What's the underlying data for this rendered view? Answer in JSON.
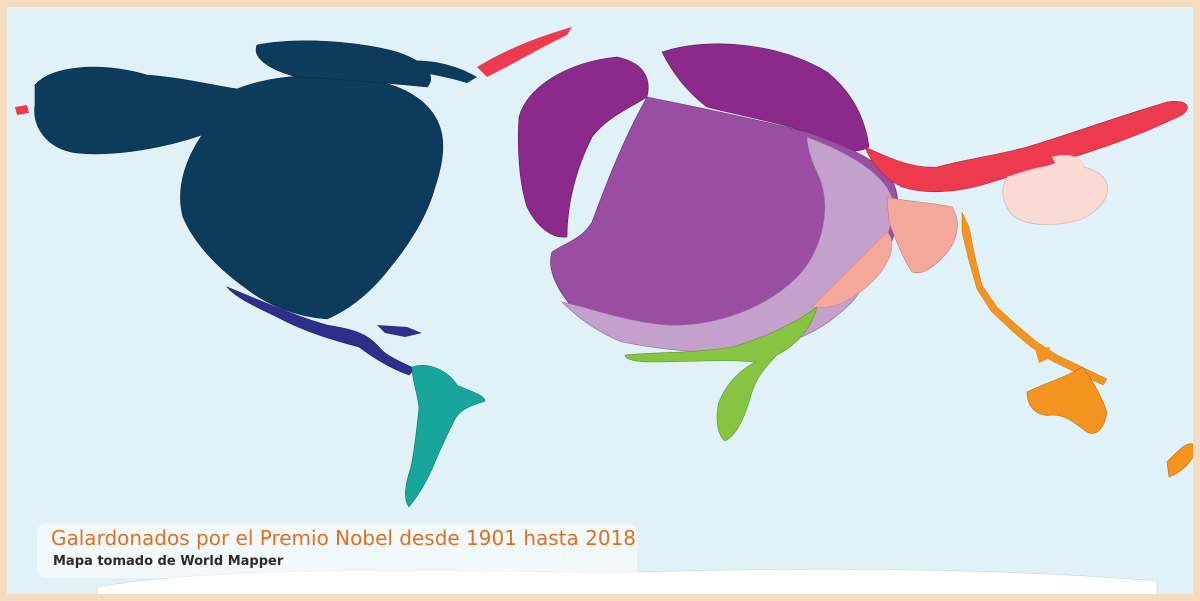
{
  "map": {
    "title": "Galardonados por el Premio Nobel desde 1901 hasta 2018",
    "subtitle": "Mapa tomado de World Mapper",
    "colors": {
      "frame": "#f3dcc0",
      "ocean": "#e1f1f8",
      "north_america": "#0d3b5c",
      "central_america": "#2d2f8a",
      "south_america": "#18a59a",
      "europe_dark": "#8c2a8c",
      "europe_mid": "#9a4ea2",
      "europe_light": "#c4a0cc",
      "russia_east": "#ee3a4e",
      "middle_east": "#f4a89c",
      "south_asia": "#f7c8c0",
      "east_asia": "#fbdad6",
      "africa": "#86c441",
      "oceania": "#f39420",
      "antarctica": "#ffffff"
    }
  }
}
